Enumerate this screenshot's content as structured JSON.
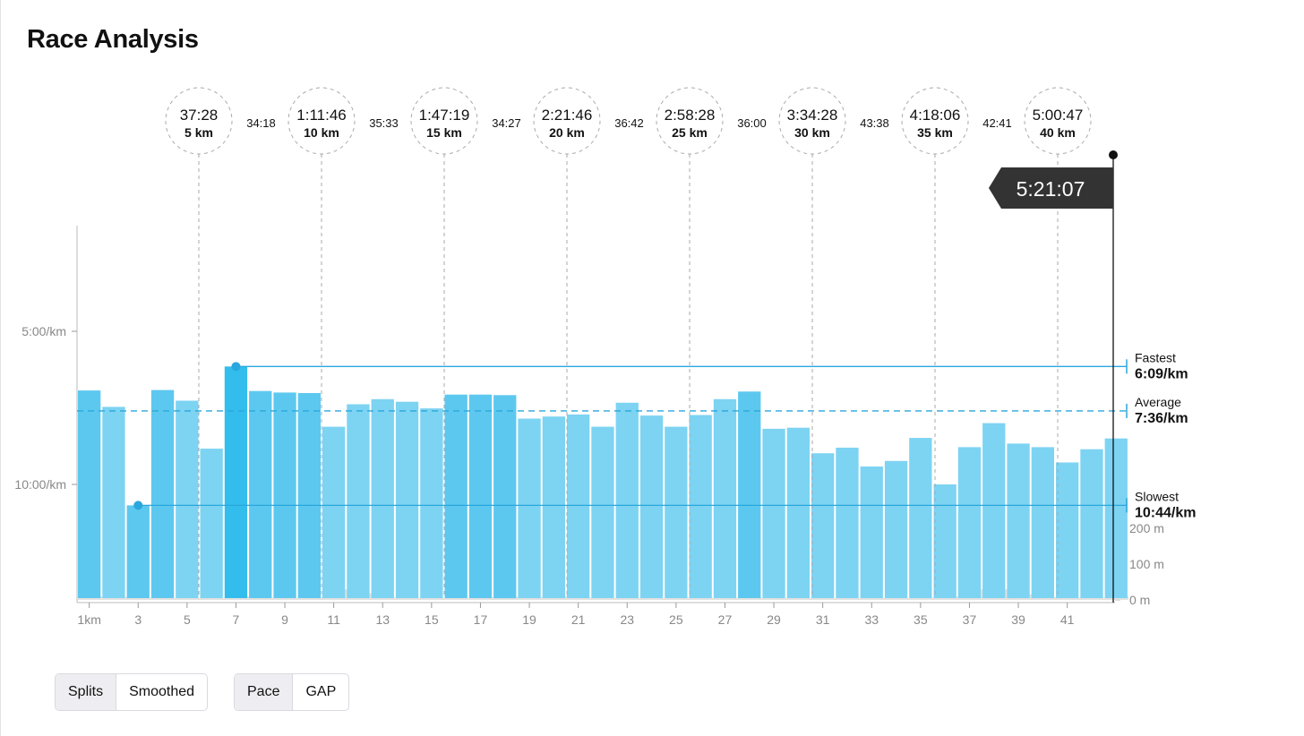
{
  "page": {
    "title": "Race Analysis"
  },
  "controls": {
    "view_group": [
      {
        "label": "Splits",
        "active": true
      },
      {
        "label": "Smoothed",
        "active": false
      }
    ],
    "metric_group": [
      {
        "label": "Pace",
        "active": true
      },
      {
        "label": "GAP",
        "active": false
      }
    ]
  },
  "chart_data": {
    "type": "bar",
    "x_tick_labels": [
      "1km",
      "3",
      "5",
      "7",
      "9",
      "11",
      "13",
      "15",
      "17",
      "19",
      "21",
      "23",
      "25",
      "27",
      "29",
      "31",
      "33",
      "35",
      "37",
      "39",
      "41"
    ],
    "x_tick_km": [
      1,
      3,
      5,
      7,
      9,
      11,
      13,
      15,
      17,
      19,
      21,
      23,
      25,
      27,
      29,
      31,
      33,
      35,
      37,
      39,
      41
    ],
    "y_tick_labels": [
      {
        "label": "5:00/km",
        "seconds": 300
      },
      {
        "label": "10:00/km",
        "seconds": 600
      }
    ],
    "pace_seconds_per_km": [
      416,
      448,
      641,
      415,
      436,
      530,
      369,
      417,
      420,
      421,
      487,
      443,
      433,
      438,
      451,
      424,
      424,
      425,
      471,
      467,
      463,
      487,
      440,
      465,
      487,
      464,
      433,
      418,
      491,
      489,
      539,
      528,
      565,
      554,
      509,
      600,
      527,
      480,
      520,
      527,
      557,
      531,
      510
    ],
    "bar_colors": [
      "#5dc8ef",
      "#7dd3f2",
      "#5dc8ef",
      "#5dc8ef",
      "#7dd3f2",
      "#7dd3f2",
      "#33bdec",
      "#5dc8ef",
      "#5dc8ef",
      "#5dc8ef",
      "#7dd3f2",
      "#7dd3f2",
      "#7dd3f2",
      "#7dd3f2",
      "#7dd3f2",
      "#5dc8ef",
      "#5dc8ef",
      "#5dc8ef",
      "#7dd3f2",
      "#7dd3f2",
      "#7dd3f2",
      "#7dd3f2",
      "#7dd3f2",
      "#7dd3f2",
      "#7dd3f2",
      "#7dd3f2",
      "#7dd3f2",
      "#5dc8ef",
      "#7dd3f2",
      "#7dd3f2",
      "#7dd3f2",
      "#7dd3f2",
      "#7dd3f2",
      "#7dd3f2",
      "#7dd3f2",
      "#7dd3f2",
      "#7dd3f2",
      "#7dd3f2",
      "#7dd3f2",
      "#7dd3f2",
      "#7dd3f2",
      "#7dd3f2",
      "#7dd3f2"
    ],
    "elevation_tick_labels": [
      {
        "label": "200 m",
        "meters": 200
      },
      {
        "label": "100 m",
        "meters": 100
      },
      {
        "label": "0 m",
        "meters": 0
      }
    ],
    "elevation_profile_m": [
      [
        0,
        14
      ],
      [
        0.5,
        18
      ],
      [
        1,
        10
      ],
      [
        1.5,
        12
      ],
      [
        2,
        8
      ],
      [
        2.5,
        10
      ],
      [
        3,
        6
      ],
      [
        3.5,
        8
      ],
      [
        4,
        5
      ],
      [
        4.5,
        6
      ],
      [
        5,
        5
      ],
      [
        5.5,
        6
      ],
      [
        6,
        5
      ],
      [
        6.5,
        6
      ],
      [
        7,
        10
      ],
      [
        7.5,
        8
      ],
      [
        8,
        6
      ],
      [
        8.5,
        6
      ],
      [
        9,
        5
      ],
      [
        9.5,
        6
      ],
      [
        10,
        8
      ],
      [
        10.5,
        20
      ],
      [
        11,
        30
      ],
      [
        11.5,
        28
      ],
      [
        12,
        18
      ],
      [
        12.5,
        10
      ],
      [
        13,
        6
      ],
      [
        13.5,
        5
      ],
      [
        14,
        6
      ],
      [
        14.5,
        5
      ],
      [
        15,
        5
      ],
      [
        15.5,
        5
      ],
      [
        16,
        5
      ],
      [
        16.5,
        6
      ],
      [
        17,
        8
      ],
      [
        17.5,
        6
      ],
      [
        18,
        8
      ],
      [
        18.5,
        12
      ],
      [
        19,
        8
      ],
      [
        19.5,
        6
      ],
      [
        20,
        12
      ],
      [
        20.5,
        8
      ],
      [
        21,
        6
      ],
      [
        21.5,
        5
      ],
      [
        22,
        5
      ],
      [
        22.5,
        5
      ],
      [
        23,
        6
      ],
      [
        23.5,
        5
      ],
      [
        24,
        5
      ],
      [
        24.5,
        5
      ],
      [
        25,
        6
      ],
      [
        25.5,
        5
      ],
      [
        26,
        5
      ],
      [
        26.5,
        6
      ],
      [
        27,
        6
      ],
      [
        27.5,
        5
      ],
      [
        28,
        6
      ],
      [
        28.5,
        5
      ],
      [
        29,
        5
      ],
      [
        29.5,
        5
      ],
      [
        30,
        5
      ],
      [
        30.5,
        6
      ],
      [
        31,
        5
      ],
      [
        31.5,
        5
      ],
      [
        32,
        5
      ],
      [
        32.5,
        5
      ],
      [
        33,
        5
      ],
      [
        33.5,
        5
      ],
      [
        34,
        5
      ],
      [
        34.5,
        5
      ],
      [
        35,
        6
      ],
      [
        35.5,
        8
      ],
      [
        36,
        10
      ],
      [
        36.5,
        20
      ],
      [
        37,
        30
      ],
      [
        37.5,
        32
      ],
      [
        38,
        30
      ],
      [
        38.5,
        22
      ],
      [
        39,
        16
      ],
      [
        39.5,
        10
      ],
      [
        40,
        8
      ],
      [
        40.5,
        10
      ],
      [
        41,
        6
      ],
      [
        41.5,
        8
      ],
      [
        42,
        6
      ],
      [
        42.5,
        8
      ],
      [
        43,
        10
      ]
    ],
    "reference_lines": [
      {
        "label": "Fastest",
        "value_label": "6:09/km",
        "seconds": 369,
        "style": "solid",
        "marker_km_index": 7
      },
      {
        "label": "Average",
        "value_label": "7:36/km",
        "seconds": 456,
        "style": "dashed"
      },
      {
        "label": "Slowest",
        "value_label": "10:44/km",
        "seconds": 641,
        "style": "solid",
        "marker_km_index": 3
      }
    ],
    "checkpoints": [
      {
        "time": "37:28",
        "distance": "5 km",
        "km": 5
      },
      {
        "time": "1:11:46",
        "distance": "10 km",
        "km": 10
      },
      {
        "time": "1:47:19",
        "distance": "15 km",
        "km": 15
      },
      {
        "time": "2:21:46",
        "distance": "20 km",
        "km": 20
      },
      {
        "time": "2:58:28",
        "distance": "25 km",
        "km": 25
      },
      {
        "time": "3:34:28",
        "distance": "30 km",
        "km": 30
      },
      {
        "time": "4:18:06",
        "distance": "35 km",
        "km": 35
      },
      {
        "time": "5:00:47",
        "distance": "40 km",
        "km": 40
      }
    ],
    "segment_splits": [
      "34:18",
      "35:33",
      "34:27",
      "36:42",
      "36:00",
      "43:38",
      "42:41"
    ],
    "finish": {
      "time": "5:21:07",
      "km": 42.2
    },
    "colors": {
      "bar_light": "#7dd3f2",
      "bar_medium": "#5dc8ef",
      "bar_fastest": "#33bdec",
      "reference_line": "#2aa7dc",
      "elevation_fill": "#dcdcdc",
      "flag": "#333333"
    }
  }
}
